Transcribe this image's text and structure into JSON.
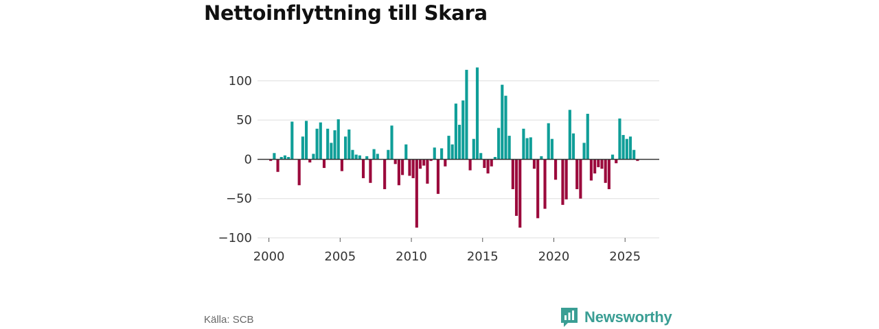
{
  "title": "Nettoinflyttning till Skara",
  "source": "Källa: SCB",
  "brand": "Newsworthy",
  "colors": {
    "positive": "#0f9e98",
    "negative": "#9b0a3c",
    "grid": "#dddddd",
    "zero": "#333333"
  },
  "chart_data": {
    "type": "bar",
    "title": "Nettoinflyttning till Skara",
    "xlabel": "",
    "ylabel": "",
    "xlim": [
      1999.2,
      2027.4
    ],
    "ylim": [
      -100,
      120
    ],
    "yticks": [
      100,
      50,
      0,
      -50,
      -100
    ],
    "ytick_labels": [
      "100",
      "50",
      "0",
      "−50",
      "−100"
    ],
    "xticks": [
      2000,
      2005,
      2010,
      2015,
      2020,
      2025
    ],
    "xtick_labels": [
      "2000",
      "2005",
      "2010",
      "2015",
      "2020",
      "2025"
    ],
    "bar_width_years": 0.2,
    "x": [
      2000.125,
      2000.375,
      2000.625,
      2000.875,
      2001.125,
      2001.375,
      2001.625,
      2001.875,
      2002.125,
      2002.375,
      2002.625,
      2002.875,
      2003.125,
      2003.375,
      2003.625,
      2003.875,
      2004.125,
      2004.375,
      2004.625,
      2004.875,
      2005.125,
      2005.375,
      2005.625,
      2005.875,
      2006.125,
      2006.375,
      2006.625,
      2006.875,
      2007.125,
      2007.375,
      2007.625,
      2007.875,
      2008.125,
      2008.375,
      2008.625,
      2008.875,
      2009.125,
      2009.375,
      2009.625,
      2009.875,
      2010.125,
      2010.375,
      2010.625,
      2010.875,
      2011.125,
      2011.375,
      2011.625,
      2011.875,
      2012.125,
      2012.375,
      2012.625,
      2012.875,
      2013.125,
      2013.375,
      2013.625,
      2013.875,
      2014.125,
      2014.375,
      2014.625,
      2014.875,
      2015.125,
      2015.375,
      2015.625,
      2015.875,
      2016.125,
      2016.375,
      2016.625,
      2016.875,
      2017.125,
      2017.375,
      2017.625,
      2017.875,
      2018.125,
      2018.375,
      2018.625,
      2018.875,
      2019.125,
      2019.375,
      2019.625,
      2019.875,
      2020.125,
      2020.375,
      2020.625,
      2020.875,
      2021.125,
      2021.375,
      2021.625,
      2021.875,
      2022.125,
      2022.375,
      2022.625,
      2022.875,
      2023.125,
      2023.375,
      2023.625,
      2023.875,
      2024.125,
      2024.375,
      2024.625,
      2024.875,
      2025.125,
      2025.375,
      2025.625,
      2025.875
    ],
    "values": [
      -2,
      8,
      -16,
      3,
      5,
      3,
      48,
      0,
      -33,
      29,
      49,
      -4,
      7,
      39,
      47,
      -11,
      39,
      21,
      37,
      51,
      -15,
      29,
      38,
      12,
      6,
      5,
      -24,
      4,
      -30,
      13,
      7,
      0,
      -38,
      12,
      43,
      -6,
      -33,
      -20,
      19,
      -21,
      -24,
      -87,
      -12,
      -8,
      -31,
      -2,
      15,
      -44,
      14,
      -9,
      30,
      19,
      71,
      44,
      75,
      114,
      -14,
      26,
      117,
      8,
      -11,
      -18,
      -9,
      3,
      40,
      95,
      81,
      30,
      -38,
      -72,
      -87,
      39,
      27,
      28,
      -12,
      -75,
      4,
      -63,
      46,
      26,
      -26,
      0,
      -58,
      -51,
      63,
      33,
      -38,
      -50,
      21,
      58,
      -27,
      -18,
      -10,
      -12,
      -30,
      -38,
      6,
      -5,
      52,
      31,
      26,
      29,
      12,
      -2
    ]
  }
}
